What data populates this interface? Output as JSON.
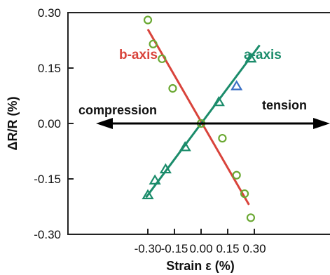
{
  "chart_data": {
    "type": "scatter",
    "title": "",
    "xlabel": "Strain ε (%)",
    "ylabel": "ΔR/R (%)",
    "xlim": [
      -0.35,
      0.33
    ],
    "ylim": [
      -0.3,
      0.3
    ],
    "xticks": [
      -0.3,
      -0.15,
      0.0,
      0.15,
      0.3
    ],
    "yticks": [
      0.3,
      0.15,
      0.0,
      -0.15,
      -0.3
    ],
    "grid": false,
    "series": [
      {
        "name": "b-axis",
        "color": "#d9433b",
        "marker_color": "#6aa832",
        "marker": "circle",
        "points": [
          {
            "x": -0.3,
            "y": 0.28
          },
          {
            "x": -0.27,
            "y": 0.215
          },
          {
            "x": -0.22,
            "y": 0.175
          },
          {
            "x": -0.16,
            "y": 0.095
          },
          {
            "x": 0.0,
            "y": 0.0
          },
          {
            "x": 0.12,
            "y": -0.04
          },
          {
            "x": 0.2,
            "y": -0.14
          },
          {
            "x": 0.245,
            "y": -0.19
          },
          {
            "x": 0.28,
            "y": -0.255
          }
        ],
        "fit": [
          {
            "x": -0.3,
            "y": 0.255
          },
          {
            "x": 0.27,
            "y": -0.22
          }
        ]
      },
      {
        "name": "a-axis",
        "color": "#1b8c6b",
        "marker_color": "#1b8c6b",
        "marker": "triangle",
        "points": [
          {
            "x": -0.3,
            "y": -0.195
          },
          {
            "x": -0.26,
            "y": -0.155
          },
          {
            "x": -0.2,
            "y": -0.125
          },
          {
            "x": -0.09,
            "y": -0.065
          },
          {
            "x": 0.1,
            "y": 0.057
          },
          {
            "x": 0.2,
            "y": 0.1
          },
          {
            "x": 0.28,
            "y": 0.175
          }
        ],
        "outlier_color": "#3a6fc4",
        "outlier_index": 5,
        "fit": [
          {
            "x": -0.31,
            "y": -0.2
          },
          {
            "x": 0.33,
            "y": 0.212
          }
        ]
      }
    ],
    "annotations": [
      {
        "text": "compression",
        "direction": "left"
      },
      {
        "text": "tension",
        "direction": "right"
      }
    ]
  }
}
